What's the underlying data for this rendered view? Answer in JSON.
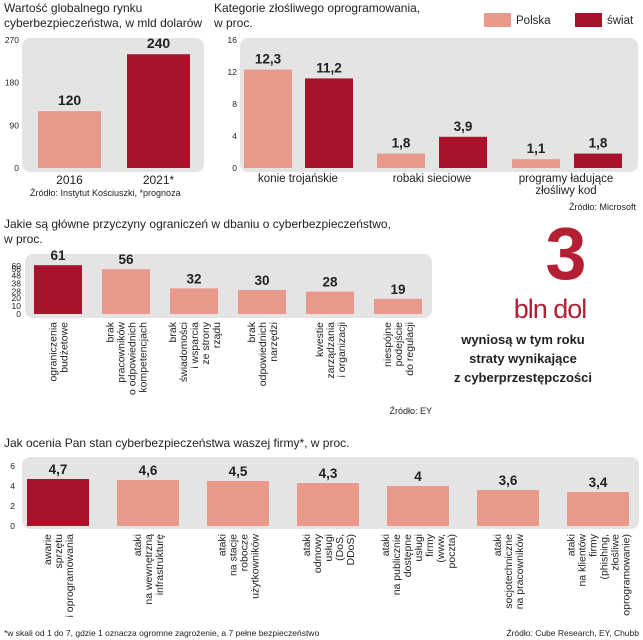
{
  "colors": {
    "polska": "#e8998a",
    "swiat": "#a8122a",
    "panel": "#e4e4e4",
    "highlight": "#b51f33"
  },
  "headline": {
    "number": "3",
    "unit": "bln dol",
    "caption": [
      "wyniosą w tym roku",
      "straty wynikające",
      "z cyberprzestępczości"
    ]
  },
  "chart_data": [
    {
      "type": "bar",
      "title": [
        "Wartość globalnego rynku",
        "cyberbezpieczeństwa, w mld dolarów"
      ],
      "categories": [
        "2016",
        "2021*"
      ],
      "values": [
        120,
        240
      ],
      "labels": [
        "120",
        "240"
      ],
      "bar_colors": [
        "polska",
        "swiat"
      ],
      "ylim": [
        0,
        270
      ],
      "yticks": [
        0,
        90,
        180,
        270
      ],
      "source": "Źródło: Instytut Kościuszki, *prognoza"
    },
    {
      "type": "bar",
      "title": [
        "Kategorie złośliwego oprogramowania,",
        "w proc."
      ],
      "legend": [
        "Polska",
        "świat"
      ],
      "categories": [
        [
          "konie trojańskie"
        ],
        [
          "robaki sieciowe"
        ],
        [
          "programy ładujące",
          "złośliwy kod"
        ]
      ],
      "series": [
        {
          "name": "Polska",
          "values": [
            12.3,
            1.8,
            1.1
          ],
          "labels": [
            "12,3",
            "1,8",
            "1,1"
          ]
        },
        {
          "name": "świat",
          "values": [
            11.2,
            3.9,
            1.8
          ],
          "labels": [
            "11,2",
            "3,9",
            "1,8"
          ]
        }
      ],
      "ylim": [
        0,
        16
      ],
      "yticks": [
        0,
        4,
        8,
        12,
        16
      ],
      "source": "Źródło: Microsoft"
    },
    {
      "type": "bar",
      "title": [
        "Jakie są główne przyczyny ograniczeń w dbaniu o cyberbezpieczeństwo,",
        "w proc."
      ],
      "categories": [
        [
          "ograniczenia",
          "budżetowe"
        ],
        [
          "brak",
          "pracowników",
          "o odpowiednich",
          "kompetencjach"
        ],
        [
          "brak",
          "świadomości",
          "i wsparcia",
          "ze strony",
          "rządu"
        ],
        [
          "brak",
          "odpowiednich",
          "narzędzi"
        ],
        [
          "kwestie",
          "zarządzania",
          "i organizacji"
        ],
        [
          "niespójne",
          "podejście",
          "do regulacji"
        ]
      ],
      "values": [
        61,
        56,
        32,
        30,
        28,
        19
      ],
      "labels": [
        "61",
        "56",
        "32",
        "30",
        "28",
        "19"
      ],
      "bar_colors": [
        "swiat",
        "polska",
        "polska",
        "polska",
        "polska",
        "polska"
      ],
      "ylim": [
        0,
        60
      ],
      "yticks": [
        0,
        10,
        20,
        28,
        38,
        48,
        56,
        60
      ],
      "source": "Źródło: EY"
    },
    {
      "type": "bar",
      "title": [
        "Jak ocenia Pan stan cyberbezpieczeństwa waszej firmy*, w proc."
      ],
      "categories": [
        [
          "awarie",
          "sprzętu",
          "i oprogramowania"
        ],
        [
          "ataki",
          "na wewnętrzną",
          "infrastrukturę"
        ],
        [
          "ataki",
          "na stacje",
          "robocze",
          "użytkowników"
        ],
        [
          "ataki",
          "odmowy",
          "usługi",
          "(DoS,",
          "DDoS)"
        ],
        [
          "ataki",
          "na publicznie",
          "dostępne",
          "usługi",
          "firmy",
          "(www,",
          "poczta)"
        ],
        [
          "ataki",
          "socjotechniczne",
          "na pracowników"
        ],
        [
          "ataki",
          "na klientów",
          "firmy",
          "(phishing,",
          "złośliwe",
          "oprogramowanie)"
        ]
      ],
      "values": [
        4.7,
        4.6,
        4.5,
        4.3,
        4,
        3.6,
        3.4
      ],
      "labels": [
        "4,7",
        "4,6",
        "4,5",
        "4,3",
        "4",
        "3,6",
        "3,4"
      ],
      "bar_colors": [
        "swiat",
        "polska",
        "polska",
        "polska",
        "polska",
        "polska",
        "polska"
      ],
      "ylim": [
        0,
        6
      ],
      "yticks": [
        0,
        2,
        4,
        6
      ],
      "footnote": "*w skali od 1 do 7, gdzie 1 oznacza ogromne zagrożenie, a 7 pełne bezpieczeństwo",
      "source": "Źródło: Cube Research, EY, Chubb"
    }
  ]
}
